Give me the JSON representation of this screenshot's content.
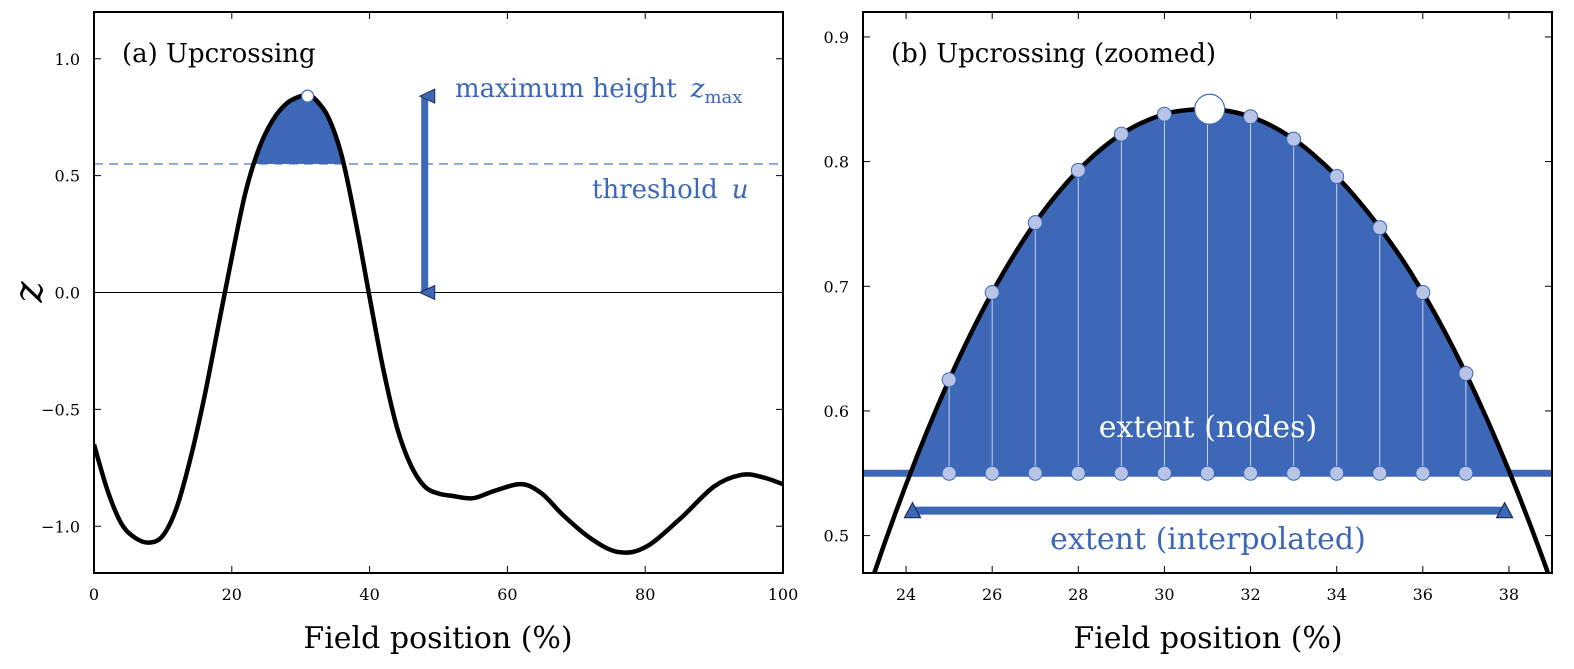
{
  "colors": {
    "accent": "#3d68b8",
    "node_fill": "#b7c4e6",
    "curve": "#000000"
  },
  "chart_data": [
    {
      "type": "line",
      "title": "(a) Upcrossing",
      "xlabel": "Field position  (%)",
      "ylabel": "z",
      "xlim": [
        0,
        100
      ],
      "ylim": [
        -1.2,
        1.2
      ],
      "xticks": [
        "0",
        "20",
        "40",
        "60",
        "80",
        "100"
      ],
      "yticks": [
        "−1.0",
        "−0.5",
        "0.0",
        "0.5",
        "1.0"
      ],
      "threshold": 0.55,
      "zero_line": 0.0,
      "series": [
        {
          "x": [
            0,
            2,
            4,
            6,
            8,
            10,
            12,
            14,
            16,
            18,
            20,
            22,
            24,
            26,
            28,
            30,
            31,
            32,
            34,
            36,
            38,
            40,
            42,
            44,
            46,
            48,
            50,
            52,
            55,
            58,
            62,
            65,
            68,
            72,
            76,
            80,
            85,
            90,
            94,
            97,
            100
          ],
          "y": [
            -0.65,
            -0.85,
            -0.99,
            -1.05,
            -1.07,
            -1.04,
            -0.92,
            -0.71,
            -0.45,
            -0.15,
            0.15,
            0.43,
            0.62,
            0.74,
            0.81,
            0.84,
            0.84,
            0.83,
            0.75,
            0.58,
            0.3,
            -0.02,
            -0.33,
            -0.58,
            -0.74,
            -0.83,
            -0.86,
            -0.87,
            -0.88,
            -0.85,
            -0.82,
            -0.86,
            -0.95,
            -1.05,
            -1.11,
            -1.09,
            -0.97,
            -0.83,
            -0.78,
            -0.79,
            -0.82
          ]
        }
      ],
      "max_point": {
        "x": 31,
        "y": 0.84
      },
      "arrow": {
        "x": 48,
        "from": 0.0,
        "to": 0.84
      },
      "annotations": {
        "max_height_prefix": "maximum height",
        "max_height_symbol": "z",
        "max_height_subscript": "max",
        "threshold_prefix": "threshold",
        "threshold_symbol": "u"
      }
    },
    {
      "type": "line",
      "title": "(b) Upcrossing  (zoomed)",
      "xlabel": "Field position  (%)",
      "xlim": [
        23,
        39
      ],
      "ylim": [
        0.47,
        0.92
      ],
      "xticks": [
        "24",
        "26",
        "28",
        "30",
        "32",
        "34",
        "36",
        "38"
      ],
      "yticks": [
        "0.5",
        "0.6",
        "0.7",
        "0.8",
        "0.9"
      ],
      "threshold": 0.55,
      "nodes": {
        "x": [
          25,
          26,
          27,
          28,
          29,
          30,
          31,
          32,
          33,
          34,
          35,
          36,
          37
        ],
        "y": [
          0.625,
          0.695,
          0.751,
          0.793,
          0.822,
          0.838,
          0.842,
          0.836,
          0.818,
          0.788,
          0.747,
          0.695,
          0.63
        ]
      },
      "max_point": {
        "x": 31.05,
        "y": 0.842
      },
      "interpolated_extent": {
        "x_start": 24.15,
        "x_end": 37.9,
        "y": 0.52
      },
      "annotations": {
        "nodes_label": "extent (nodes)",
        "interp_label": "extent (interpolated)"
      }
    }
  ]
}
